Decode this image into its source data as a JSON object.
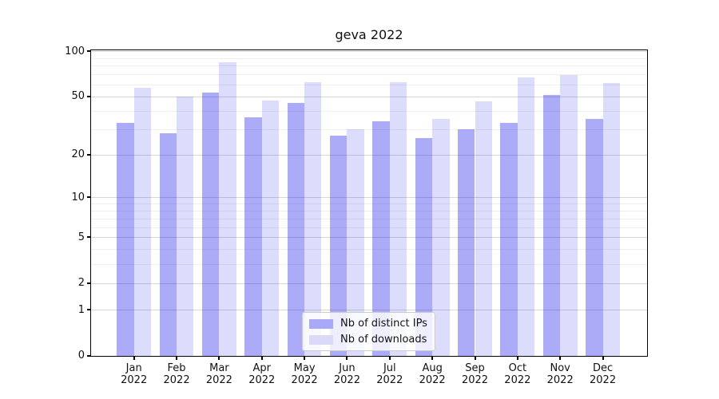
{
  "chart_data": {
    "type": "bar",
    "title": "geva 2022",
    "categories": [
      "Jan",
      "Feb",
      "Mar",
      "Apr",
      "May",
      "Jun",
      "Jul",
      "Aug",
      "Sep",
      "Oct",
      "Nov",
      "Dec"
    ],
    "year_label": "2022",
    "series": [
      {
        "name": "Nb of distinct IPs",
        "color": "#a9a9f8",
        "fill": "rgba(10,10,235,0.34)",
        "values": [
          33,
          28,
          53,
          36,
          45,
          27,
          34,
          26,
          30,
          33,
          51,
          35
        ]
      },
      {
        "name": "Nb of downloads",
        "color": "#dadaf8",
        "fill": "rgba(10,10,235,0.14)",
        "values": [
          57,
          50,
          84,
          47,
          62,
          30,
          62,
          35,
          46,
          67,
          69,
          61
        ]
      }
    ],
    "xlabel": "",
    "ylabel": "",
    "ylim": [
      0,
      100
    ],
    "yscale": "log-like (log10(1+v), zero shown)",
    "yticks": [
      0,
      1,
      2,
      5,
      10,
      20,
      50,
      100
    ],
    "yticks_minor": [
      3,
      4,
      6,
      7,
      8,
      9,
      30,
      40,
      60,
      70,
      80,
      90
    ],
    "grid": "horizontal, major and minor",
    "legend_position": "lower center"
  }
}
